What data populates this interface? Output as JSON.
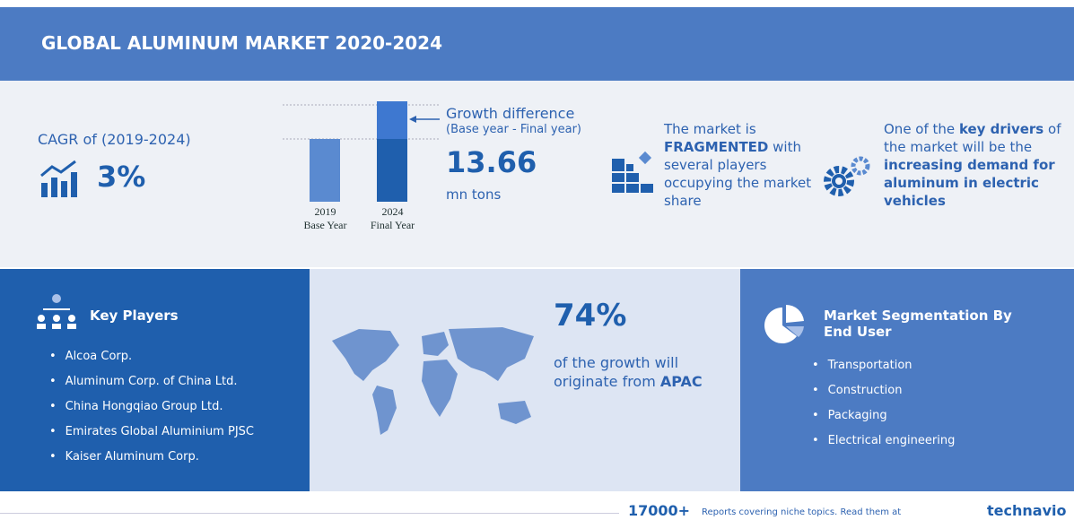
{
  "header": {
    "title": "GLOBAL ALUMINUM MARKET 2020-2024"
  },
  "cagr": {
    "label": "CAGR of (2019-2024)",
    "value": "3%"
  },
  "growth": {
    "bars": [
      {
        "year": "2019",
        "label": "Base Year"
      },
      {
        "year": "2024",
        "label": "Final Year"
      }
    ],
    "title": "Growth difference",
    "subtitle": "(Base year - Final year)",
    "value": "13.66",
    "unit": "mn tons"
  },
  "fragmented": {
    "parts": [
      "The market is",
      "FRAGMENTED",
      "with several players occupying the market share"
    ]
  },
  "drivers": {
    "parts": [
      "One of the",
      "key drivers",
      "of the market will be the",
      "increasing demand for aluminum in electric vehicles"
    ]
  },
  "key_players": {
    "title": "Key Players",
    "items": [
      "Alcoa Corp.",
      "Aluminum Corp. of China Ltd.",
      "China Hongqiao Group Ltd.",
      "Emirates Global Aluminium PJSC",
      "Kaiser Aluminum Corp."
    ]
  },
  "region": {
    "value": "74%",
    "text": "of the growth will originate from",
    "region": "APAC"
  },
  "segmentation": {
    "title": "Market Segmentation By End User",
    "items": [
      "Transportation",
      "Construction",
      "Packaging",
      "Electrical engineering"
    ]
  },
  "footer": {
    "count": "17000+",
    "text": "Reports covering niche topics. Read them at",
    "brand": "technavio"
  }
}
